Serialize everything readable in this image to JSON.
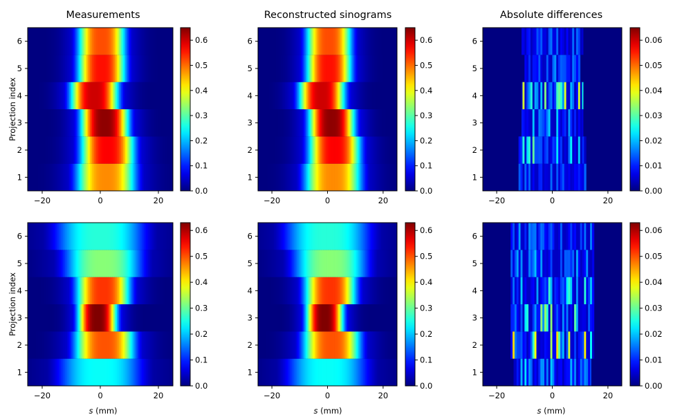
{
  "chart_data": {
    "type": "heatmap",
    "colormap": "jet",
    "xlabel": "s (mm)",
    "ylabel": "Projection index",
    "xlim": [
      -25,
      25
    ],
    "ylim": [
      0.5,
      6.5
    ],
    "x_ticks": [
      -20,
      0,
      20
    ],
    "y_ticks": [
      1,
      2,
      3,
      4,
      5,
      6
    ],
    "column_titles": [
      "Measurements",
      "Reconstructed sinograms",
      "Absolute differences"
    ],
    "panels": [
      {
        "row": 0,
        "col": 0,
        "vmin": 0,
        "vmax": 0.65,
        "colorbar_ticks": [
          "0.0",
          "0.1",
          "0.2",
          "0.3",
          "0.4",
          "0.5",
          "0.6"
        ],
        "colorbar_values": [
          0,
          0.1,
          0.2,
          0.3,
          0.4,
          0.5,
          0.6
        ],
        "bands": [
          {
            "projection": 1,
            "center": 2.0,
            "width": 10.0,
            "peak": 0.48,
            "kind": "smooth"
          },
          {
            "projection": 2,
            "center": 2.5,
            "width": 9.0,
            "peak": 0.57,
            "kind": "smooth"
          },
          {
            "projection": 3,
            "center": 1.5,
            "width": 8.0,
            "peak": 0.64,
            "kind": "smooth"
          },
          {
            "projection": 4,
            "center": -2.0,
            "width": 8.0,
            "peak": 0.6,
            "kind": "smooth"
          },
          {
            "projection": 5,
            "center": 0.5,
            "width": 8.0,
            "peak": 0.56,
            "kind": "smooth"
          },
          {
            "projection": 6,
            "center": 0.5,
            "width": 8.0,
            "peak": 0.52,
            "kind": "smooth"
          }
        ]
      },
      {
        "row": 0,
        "col": 1,
        "vmin": 0,
        "vmax": 0.65,
        "colorbar_ticks": [
          "0.0",
          "0.1",
          "0.2",
          "0.3",
          "0.4",
          "0.5",
          "0.6"
        ],
        "colorbar_values": [
          0,
          0.1,
          0.2,
          0.3,
          0.4,
          0.5,
          0.6
        ],
        "bands": [
          {
            "projection": 1,
            "center": 2.0,
            "width": 10.0,
            "peak": 0.48,
            "kind": "smooth"
          },
          {
            "projection": 2,
            "center": 2.5,
            "width": 9.0,
            "peak": 0.57,
            "kind": "smooth"
          },
          {
            "projection": 3,
            "center": 1.5,
            "width": 8.0,
            "peak": 0.64,
            "kind": "smooth"
          },
          {
            "projection": 4,
            "center": -2.0,
            "width": 8.0,
            "peak": 0.6,
            "kind": "smooth"
          },
          {
            "projection": 5,
            "center": 0.5,
            "width": 8.0,
            "peak": 0.56,
            "kind": "smooth"
          },
          {
            "projection": 6,
            "center": 0.5,
            "width": 8.0,
            "peak": 0.52,
            "kind": "smooth"
          }
        ]
      },
      {
        "row": 0,
        "col": 2,
        "vmin": 0,
        "vmax": 0.065,
        "colorbar_ticks": [
          "0.00",
          "0.01",
          "0.02",
          "0.03",
          "0.04",
          "0.05",
          "0.06"
        ],
        "colorbar_values": [
          0,
          0.01,
          0.02,
          0.03,
          0.04,
          0.05,
          0.06
        ],
        "bands": [
          {
            "projection": 1,
            "center": 0,
            "width": 24,
            "peak": 0.012,
            "kind": "stripes"
          },
          {
            "projection": 2,
            "center": 0,
            "width": 24,
            "peak": 0.028,
            "kind": "stripes"
          },
          {
            "projection": 3,
            "center": 0,
            "width": 22,
            "peak": 0.018,
            "kind": "stripes"
          },
          {
            "projection": 4,
            "center": 0,
            "width": 22,
            "peak": 0.036,
            "kind": "stripes"
          },
          {
            "projection": 5,
            "center": 0,
            "width": 20,
            "peak": 0.014,
            "kind": "stripes"
          },
          {
            "projection": 6,
            "center": 0,
            "width": 22,
            "peak": 0.012,
            "kind": "stripes"
          }
        ]
      },
      {
        "row": 1,
        "col": 0,
        "vmin": 0,
        "vmax": 0.63,
        "colorbar_ticks": [
          "0.0",
          "0.1",
          "0.2",
          "0.3",
          "0.4",
          "0.5",
          "0.6"
        ],
        "colorbar_values": [
          0,
          0.1,
          0.2,
          0.3,
          0.4,
          0.5,
          0.6
        ],
        "bands": [
          {
            "projection": 1,
            "center": 0.0,
            "width": 14.0,
            "peak": 0.24,
            "kind": "smooth"
          },
          {
            "projection": 2,
            "center": 1.5,
            "width": 10.0,
            "peak": 0.5,
            "kind": "smooth"
          },
          {
            "projection": 3,
            "center": -1.0,
            "width": 6.5,
            "peak": 0.63,
            "kind": "smooth"
          },
          {
            "projection": 4,
            "center": 1.0,
            "width": 9.0,
            "peak": 0.52,
            "kind": "smooth"
          },
          {
            "projection": 5,
            "center": 1.0,
            "width": 13.0,
            "peak": 0.32,
            "kind": "smooth"
          },
          {
            "projection": 6,
            "center": 0.0,
            "width": 15.0,
            "peak": 0.26,
            "kind": "smooth"
          }
        ]
      },
      {
        "row": 1,
        "col": 1,
        "vmin": 0,
        "vmax": 0.63,
        "colorbar_ticks": [
          "0.0",
          "0.1",
          "0.2",
          "0.3",
          "0.4",
          "0.5",
          "0.6"
        ],
        "colorbar_values": [
          0,
          0.1,
          0.2,
          0.3,
          0.4,
          0.5,
          0.6
        ],
        "bands": [
          {
            "projection": 1,
            "center": 0.0,
            "width": 14.0,
            "peak": 0.24,
            "kind": "smooth"
          },
          {
            "projection": 2,
            "center": 1.5,
            "width": 10.0,
            "peak": 0.5,
            "kind": "smooth"
          },
          {
            "projection": 3,
            "center": -1.0,
            "width": 6.5,
            "peak": 0.63,
            "kind": "smooth"
          },
          {
            "projection": 4,
            "center": 1.0,
            "width": 9.0,
            "peak": 0.52,
            "kind": "smooth"
          },
          {
            "projection": 5,
            "center": 1.0,
            "width": 13.0,
            "peak": 0.32,
            "kind": "smooth"
          },
          {
            "projection": 6,
            "center": 0.0,
            "width": 15.0,
            "peak": 0.26,
            "kind": "smooth"
          }
        ]
      },
      {
        "row": 1,
        "col": 2,
        "vmin": 0,
        "vmax": 0.063,
        "colorbar_ticks": [
          "0.00",
          "0.01",
          "0.02",
          "0.03",
          "0.04",
          "0.05",
          "0.06"
        ],
        "colorbar_values": [
          0,
          0.01,
          0.02,
          0.03,
          0.04,
          0.05,
          0.06
        ],
        "bands": [
          {
            "projection": 1,
            "center": 0,
            "width": 28,
            "peak": 0.018,
            "kind": "stripes"
          },
          {
            "projection": 2,
            "center": 0,
            "width": 30,
            "peak": 0.038,
            "kind": "stripes"
          },
          {
            "projection": 3,
            "center": 0,
            "width": 30,
            "peak": 0.03,
            "kind": "stripes"
          },
          {
            "projection": 4,
            "center": 0,
            "width": 30,
            "peak": 0.026,
            "kind": "stripes"
          },
          {
            "projection": 5,
            "center": 0,
            "width": 30,
            "peak": 0.016,
            "kind": "stripes"
          },
          {
            "projection": 6,
            "center": 0,
            "width": 30,
            "peak": 0.016,
            "kind": "stripes"
          }
        ]
      }
    ]
  }
}
